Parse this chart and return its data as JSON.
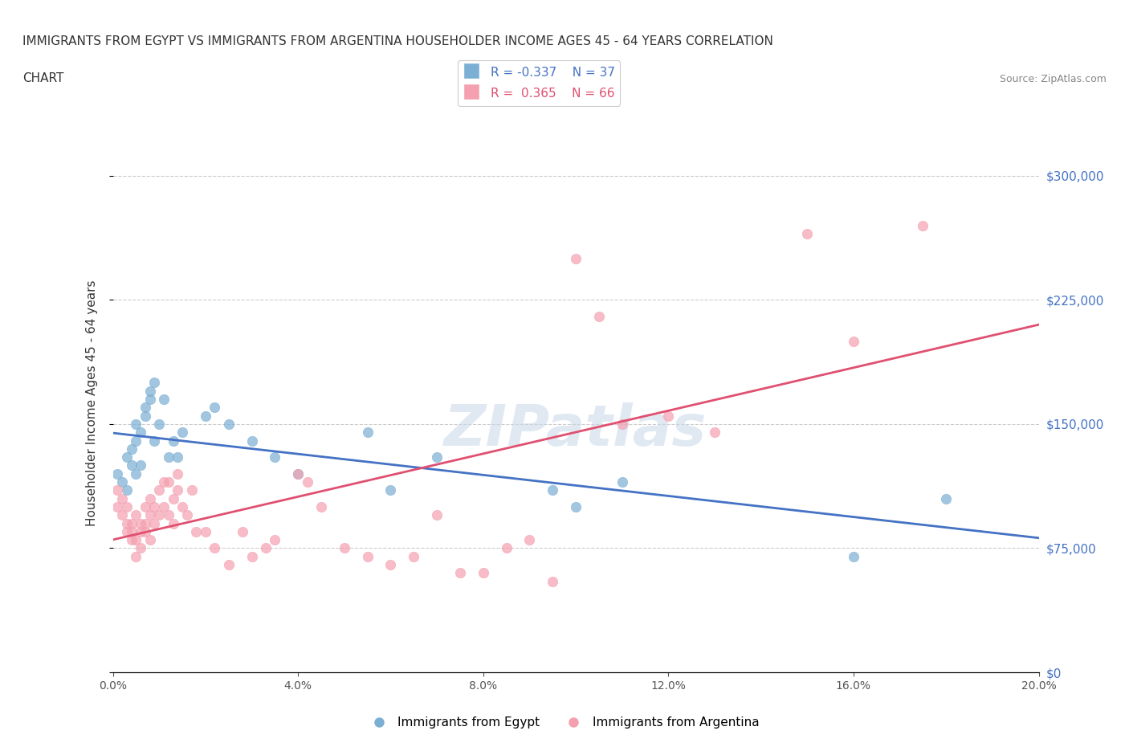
{
  "title_line1": "IMMIGRANTS FROM EGYPT VS IMMIGRANTS FROM ARGENTINA HOUSEHOLDER INCOME AGES 45 - 64 YEARS CORRELATION",
  "title_line2": "CHART",
  "source": "Source: ZipAtlas.com",
  "ylabel": "Householder Income Ages 45 - 64 years",
  "xlabel": "",
  "xlim": [
    0.0,
    0.2
  ],
  "ylim": [
    0,
    325000
  ],
  "yticks": [
    0,
    75000,
    150000,
    225000,
    300000
  ],
  "ytick_labels": [
    "$0",
    "$75,000",
    "$150,000",
    "$225,000",
    "$300,000"
  ],
  "xticks": [
    0.0,
    0.04,
    0.08,
    0.12,
    0.16,
    0.2
  ],
  "xtick_labels": [
    "0.0%",
    "4.0%",
    "8.0%",
    "12.0%",
    "16.0%",
    "20.0%"
  ],
  "egypt_color": "#7BAFD4",
  "argentina_color": "#F4A0B0",
  "egypt_line_color": "#4472C4",
  "argentina_line_color": "#E05070",
  "legend_label_egypt": "Immigrants from Egypt",
  "legend_label_argentina": "Immigrants from Argentina",
  "egypt_R": -0.337,
  "egypt_N": 37,
  "argentina_R": 0.365,
  "argentina_N": 66,
  "egypt_x": [
    0.001,
    0.002,
    0.003,
    0.003,
    0.004,
    0.004,
    0.005,
    0.005,
    0.005,
    0.006,
    0.006,
    0.007,
    0.007,
    0.008,
    0.008,
    0.009,
    0.009,
    0.01,
    0.011,
    0.012,
    0.013,
    0.014,
    0.015,
    0.02,
    0.022,
    0.025,
    0.03,
    0.035,
    0.04,
    0.055,
    0.06,
    0.07,
    0.095,
    0.1,
    0.11,
    0.16,
    0.18
  ],
  "egypt_y": [
    120000,
    115000,
    110000,
    130000,
    125000,
    135000,
    120000,
    140000,
    150000,
    125000,
    145000,
    160000,
    155000,
    165000,
    170000,
    175000,
    140000,
    150000,
    165000,
    130000,
    140000,
    130000,
    145000,
    155000,
    160000,
    150000,
    140000,
    130000,
    120000,
    145000,
    110000,
    130000,
    110000,
    100000,
    115000,
    70000,
    105000
  ],
  "argentina_x": [
    0.001,
    0.001,
    0.002,
    0.002,
    0.003,
    0.003,
    0.003,
    0.004,
    0.004,
    0.004,
    0.005,
    0.005,
    0.005,
    0.006,
    0.006,
    0.006,
    0.007,
    0.007,
    0.007,
    0.008,
    0.008,
    0.008,
    0.009,
    0.009,
    0.01,
    0.01,
    0.011,
    0.011,
    0.012,
    0.012,
    0.013,
    0.013,
    0.014,
    0.014,
    0.015,
    0.016,
    0.017,
    0.018,
    0.02,
    0.022,
    0.025,
    0.028,
    0.03,
    0.033,
    0.035,
    0.04,
    0.042,
    0.045,
    0.05,
    0.055,
    0.06,
    0.065,
    0.07,
    0.075,
    0.08,
    0.085,
    0.09,
    0.095,
    0.1,
    0.105,
    0.11,
    0.12,
    0.13,
    0.15,
    0.16,
    0.175
  ],
  "argentina_y": [
    100000,
    110000,
    95000,
    105000,
    85000,
    90000,
    100000,
    80000,
    90000,
    85000,
    95000,
    80000,
    70000,
    90000,
    85000,
    75000,
    90000,
    100000,
    85000,
    95000,
    105000,
    80000,
    90000,
    100000,
    110000,
    95000,
    115000,
    100000,
    115000,
    95000,
    105000,
    90000,
    110000,
    120000,
    100000,
    95000,
    110000,
    85000,
    85000,
    75000,
    65000,
    85000,
    70000,
    75000,
    80000,
    120000,
    115000,
    100000,
    75000,
    70000,
    65000,
    70000,
    95000,
    60000,
    60000,
    75000,
    80000,
    55000,
    250000,
    215000,
    150000,
    155000,
    145000,
    265000,
    200000,
    270000
  ],
  "watermark": "ZIPatlas",
  "background_color": "#FFFFFF",
  "grid_color": "#CCCCCC"
}
